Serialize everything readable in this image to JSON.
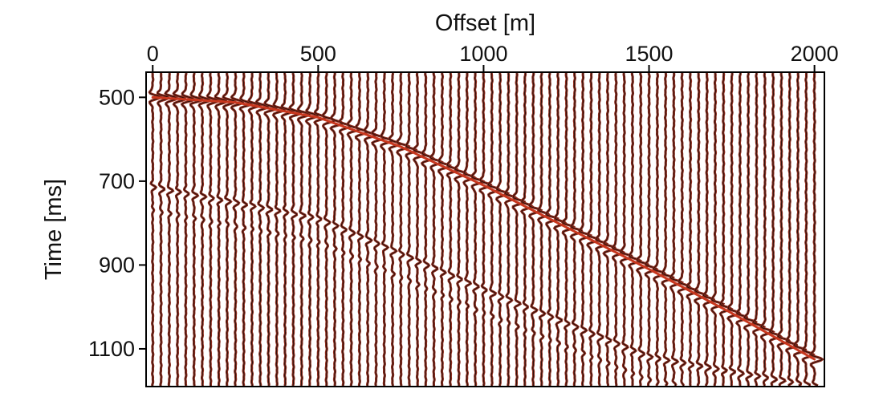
{
  "chart_data": {
    "type": "line",
    "subtype": "seismic-wiggle-gather",
    "xlabel": "Offset [m]",
    "ylabel": "Time [ms]",
    "x_axis_position": "top",
    "y_axis_inverted": true,
    "xlim": [
      -20,
      2030
    ],
    "ylim": [
      440,
      1190
    ],
    "x_ticks": [
      0,
      500,
      1000,
      1500,
      2000
    ],
    "x_tick_labels": [
      "0",
      "500",
      "1000",
      "1500",
      "2000"
    ],
    "y_ticks": [
      500,
      700,
      900,
      1100
    ],
    "y_tick_labels": [
      "500",
      "700",
      "900",
      "1100"
    ],
    "grid": false,
    "trace_spacing_m": 25,
    "trace_offset_range": [
      0,
      2000
    ],
    "series": [
      {
        "role": "primary-reflection-traveltime",
        "color": "#c8371e",
        "x": [
          0,
          250,
          500,
          750,
          1000,
          1250,
          1500,
          1750,
          2000
        ],
        "y": [
          500,
          512,
          548,
          618,
          710,
          810,
          910,
          1015,
          1125
        ]
      },
      {
        "role": "secondary-events",
        "x": [
          0,
          500,
          1000,
          1500,
          2000
        ],
        "y": [
          715,
          790,
          960,
          1120,
          1190
        ]
      }
    ],
    "colors": {
      "trace_fill": "#8b2a1c",
      "trace_line": "#1a0d08",
      "curve": "#c8371e"
    }
  }
}
